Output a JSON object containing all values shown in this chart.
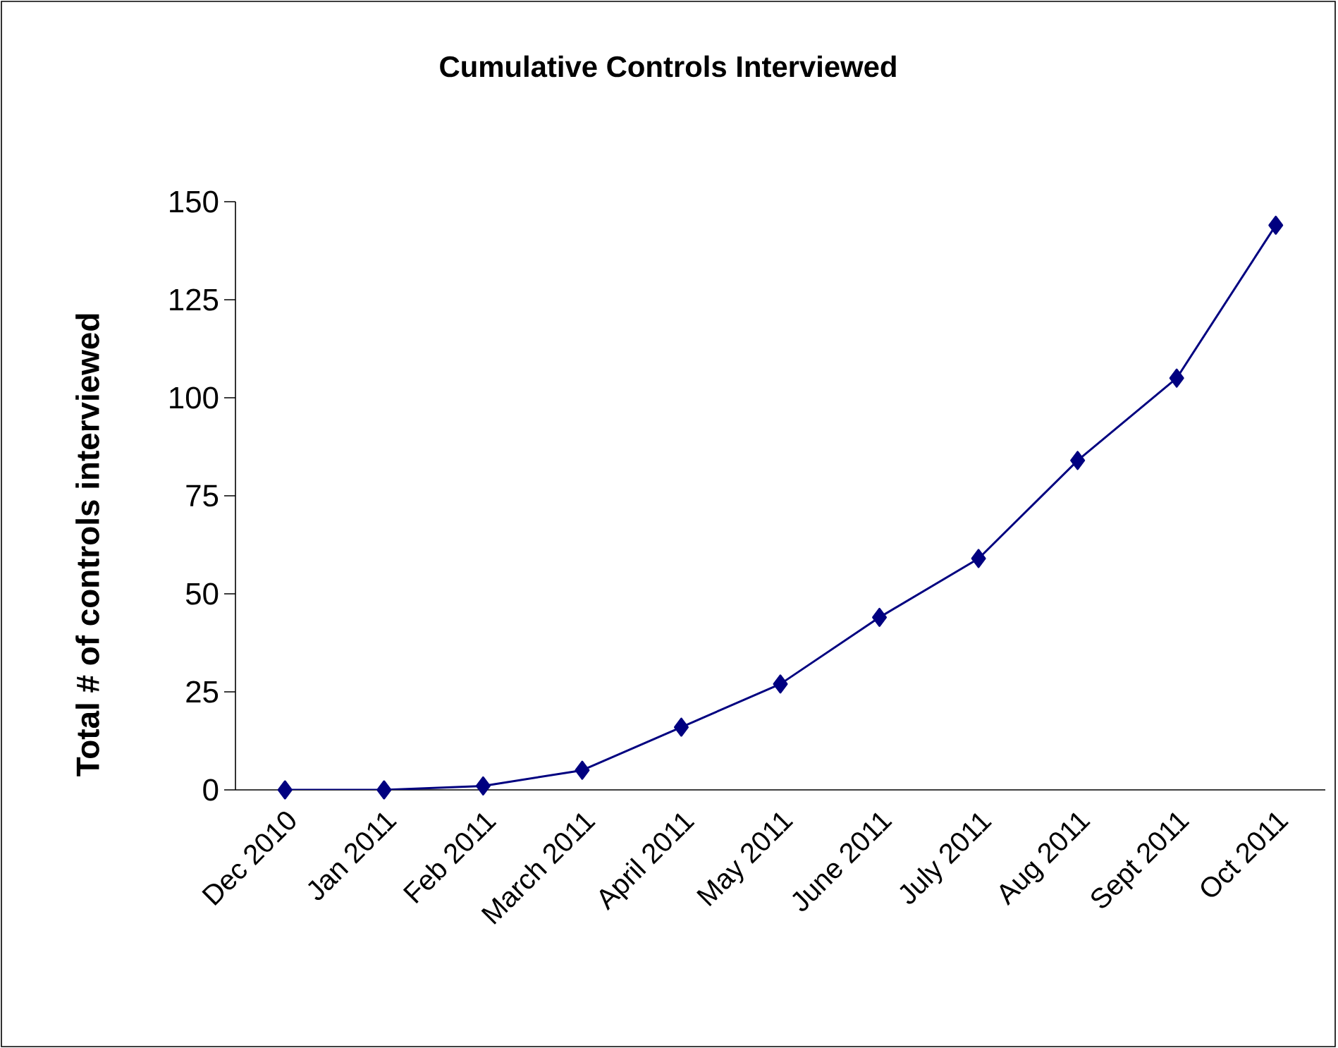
{
  "chart_data": {
    "type": "line",
    "title": "Cumulative Controls Interviewed",
    "ylabel": "Total # of controls interviewed",
    "categories": [
      "Dec 2010",
      "Jan 2011",
      "Feb 2011",
      "March 2011",
      "April 2011",
      "May 2011",
      "June 2011",
      "July 2011",
      "Aug 2011",
      "Sept 2011",
      "Oct 2011"
    ],
    "values": [
      0,
      0,
      1,
      5,
      16,
      27,
      44,
      59,
      84,
      105,
      144
    ],
    "color": "#000080",
    "marker": "diamond",
    "line_style": "solid",
    "ylim": [
      0,
      150
    ],
    "yticks": [
      0,
      25,
      50,
      75,
      100,
      125,
      150
    ]
  }
}
